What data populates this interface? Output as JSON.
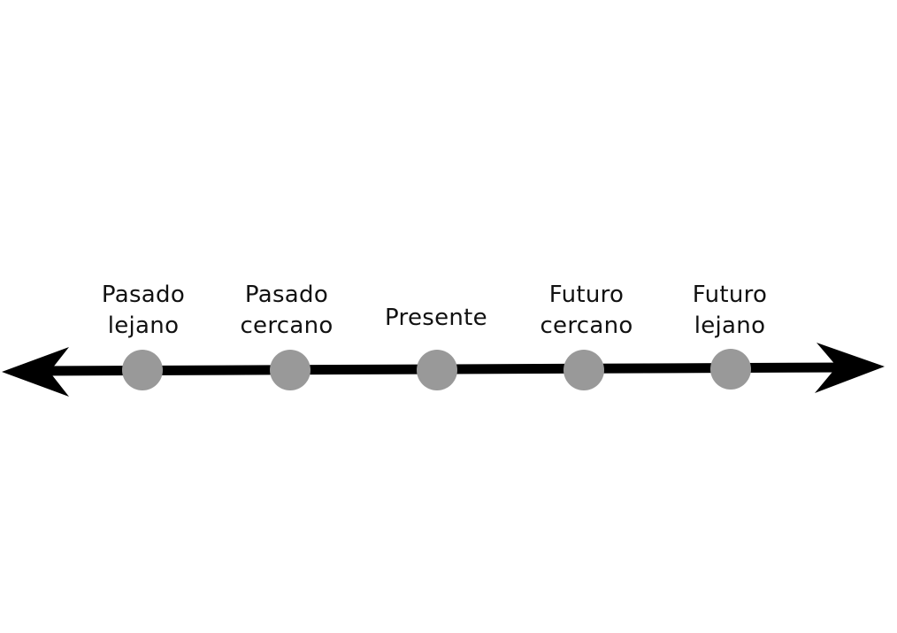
{
  "colors": {
    "background": "#ffffff",
    "axis": "#000000",
    "marker": "#999999",
    "text": "#111111"
  },
  "timeline": {
    "points": [
      {
        "lines": [
          "Pasado",
          "lejano"
        ]
      },
      {
        "lines": [
          "Pasado",
          "cercano"
        ]
      },
      {
        "lines": [
          "Presente"
        ]
      },
      {
        "lines": [
          "Futuro",
          "cercano"
        ]
      },
      {
        "lines": [
          "Futuro",
          "lejano"
        ]
      }
    ]
  }
}
